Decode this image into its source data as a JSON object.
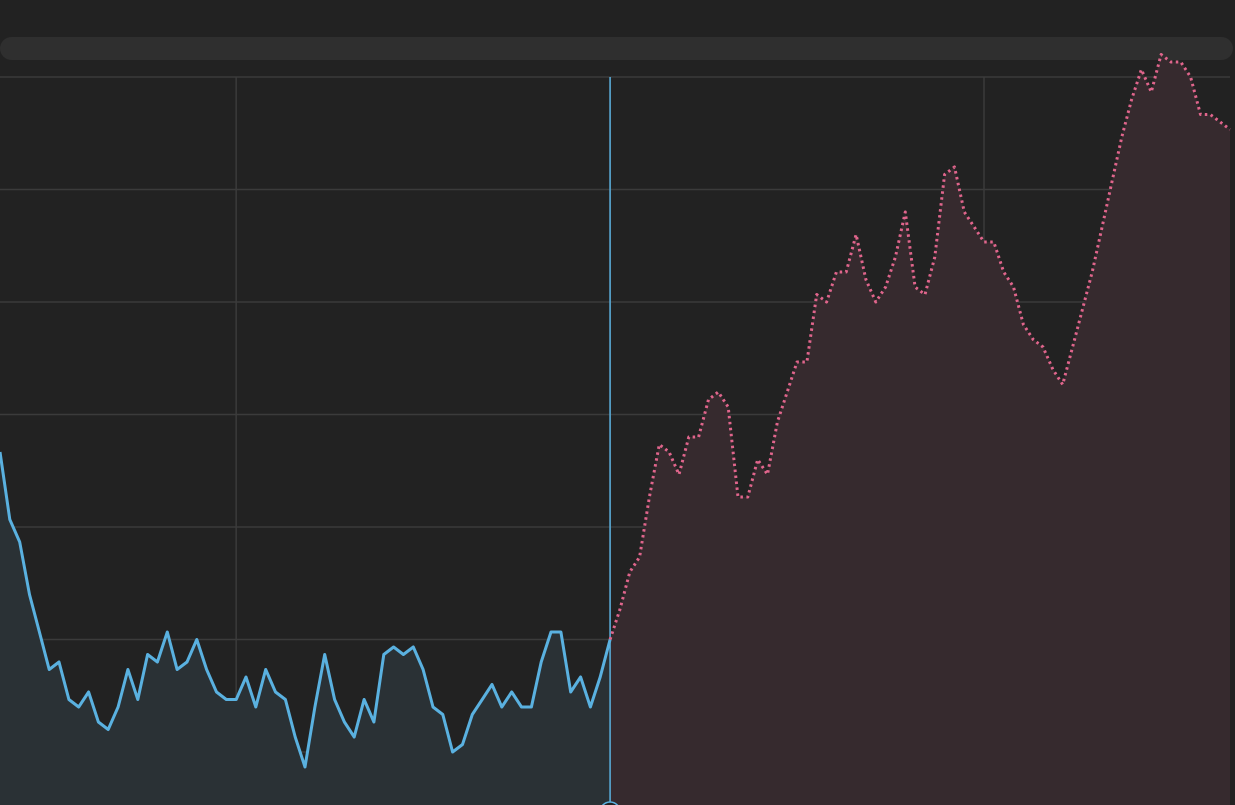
{
  "chart_data": {
    "type": "line",
    "grid": true,
    "legend": "none",
    "xlim": [
      0,
      250
    ],
    "ylim": [
      0,
      100
    ],
    "x_gridlines": [
      48,
      124,
      200
    ],
    "y_gridlines": [
      10,
      25,
      40,
      55,
      70,
      85,
      100
    ],
    "cursor_x": 124,
    "colors": {
      "background": "#222222",
      "grid": "#3b3b3b",
      "history_line": "#5ab1e0",
      "history_fill": "#2a3135",
      "forecast_line": "#e0658c",
      "forecast_fill": "#362a2e",
      "cursor": "#5ab1e0"
    },
    "series": [
      {
        "style": "solid",
        "x": [
          0,
          2,
          4,
          6,
          8,
          10,
          12,
          14,
          16,
          18,
          20,
          22,
          24,
          26,
          28,
          30,
          32,
          34,
          36,
          38,
          40,
          42,
          44,
          46,
          48,
          50,
          52,
          54,
          56,
          58,
          60,
          62,
          64,
          66,
          68,
          70,
          72,
          74,
          76,
          78,
          80,
          82,
          84,
          86,
          88,
          90,
          92,
          94,
          96,
          98,
          100,
          102,
          104,
          106,
          108,
          110,
          112,
          114,
          116,
          118,
          120,
          122,
          124
        ],
        "values": [
          50,
          41,
          38,
          31,
          26,
          21,
          22,
          17,
          16,
          18,
          14,
          13,
          16,
          21,
          17,
          23,
          22,
          26,
          21,
          22,
          25,
          21,
          18,
          17,
          17,
          20,
          16,
          21,
          18,
          17,
          12,
          8,
          16,
          23,
          17,
          14,
          12,
          17,
          14,
          23,
          24,
          23,
          24,
          21,
          16,
          15,
          10,
          11,
          15,
          17,
          19,
          16,
          18,
          16,
          16,
          22,
          26,
          26,
          18,
          20,
          16,
          20,
          25
        ]
      },
      {
        "style": "dotted",
        "x": [
          124,
          126,
          128,
          130,
          132,
          134,
          136,
          138,
          140,
          142,
          144,
          146,
          148,
          150,
          152,
          154,
          156,
          158,
          160,
          162,
          164,
          166,
          168,
          170,
          172,
          174,
          176,
          178,
          180,
          182,
          184,
          186,
          188,
          190,
          192,
          194,
          196,
          198,
          200,
          202,
          204,
          206,
          208,
          210,
          212,
          214,
          216,
          218,
          220,
          222,
          224,
          226,
          228,
          230,
          232,
          234,
          236,
          238,
          240,
          242,
          244,
          246,
          248,
          250
        ],
        "values": [
          25,
          29,
          34,
          36,
          44,
          51,
          50,
          47,
          52,
          52,
          57,
          58,
          56,
          44,
          44,
          49,
          47,
          54,
          58,
          62,
          62,
          71,
          70,
          74,
          74,
          79,
          73,
          70,
          72,
          76,
          82,
          72,
          71,
          76,
          87,
          88,
          82,
          80,
          78,
          78,
          74,
          72,
          67,
          65,
          64,
          61,
          59,
          64,
          69,
          74,
          80,
          86,
          92,
          97,
          101,
          98,
          103,
          102,
          102,
          100,
          95,
          95,
          94,
          93
        ]
      }
    ]
  }
}
